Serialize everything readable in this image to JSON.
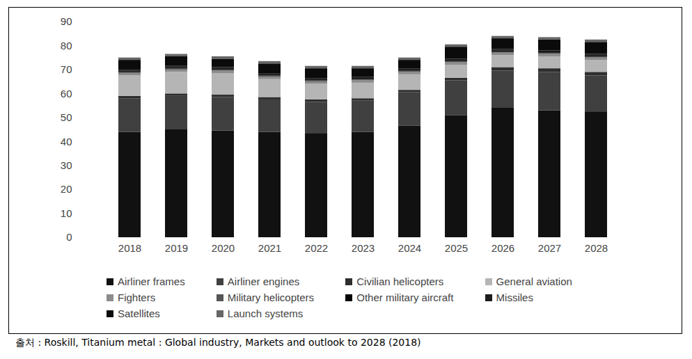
{
  "chart_data": {
    "type": "bar",
    "stacked": true,
    "source": "출처 : Roskill, Titanium metal : Global industry, Markets and outlook to 2028 (2018)",
    "categories": [
      "2018",
      "2019",
      "2020",
      "2021",
      "2022",
      "2023",
      "2024",
      "2025",
      "2026",
      "2027",
      "2028"
    ],
    "series": [
      {
        "name": "Airliner frames",
        "color": "#111111",
        "values": [
          44,
          45,
          44.5,
          44,
          43.5,
          44,
          46.5,
          51,
          54,
          53,
          52.5
        ]
      },
      {
        "name": "Airliner engines",
        "color": "#404040",
        "values": [
          14,
          14,
          14,
          13.5,
          13,
          13,
          14,
          14.5,
          15.5,
          16,
          15
        ]
      },
      {
        "name": "Civilian helicopters",
        "color": "#2e2e2e",
        "values": [
          1,
          1,
          1,
          1,
          1,
          1,
          1,
          1,
          1.5,
          1.5,
          1.5
        ]
      },
      {
        "name": "General aviation",
        "color": "#b5b5b5",
        "values": [
          8.5,
          9,
          9,
          7.5,
          6.5,
          6.5,
          6.5,
          5.5,
          5,
          5,
          5
        ]
      },
      {
        "name": "Fighters",
        "color": "#8c8c8c",
        "values": [
          1,
          1,
          1,
          1,
          1,
          1,
          1,
          1,
          1,
          1,
          1
        ]
      },
      {
        "name": "Military helicopters",
        "color": "#555555",
        "values": [
          0.5,
          0.5,
          0.5,
          0.5,
          0.5,
          0.5,
          0.5,
          0.5,
          0.5,
          0.5,
          0.5
        ]
      },
      {
        "name": "Other military aircraft",
        "color": "#050505",
        "values": [
          0.5,
          0.5,
          0.5,
          0.5,
          0.5,
          0.5,
          0.5,
          0.5,
          0.5,
          0.5,
          0.5
        ]
      },
      {
        "name": "Missiles",
        "color": "#1c1c1c",
        "values": [
          0.5,
          0.5,
          0.5,
          0.5,
          0.5,
          0.5,
          0.5,
          0.5,
          0.5,
          0.5,
          0.5
        ]
      },
      {
        "name": "Satellites",
        "color": "#0b0b0b",
        "values": [
          4,
          4,
          3.5,
          4,
          4,
          3.5,
          3.5,
          5,
          4.5,
          4.5,
          5
        ]
      },
      {
        "name": "Launch systems",
        "color": "#666666",
        "values": [
          1,
          1,
          1,
          1,
          1,
          1,
          1,
          1,
          1,
          1,
          1
        ]
      }
    ],
    "ylim": [
      0,
      90
    ],
    "yticks": [
      0,
      10,
      20,
      30,
      40,
      50,
      60,
      70,
      80,
      90
    ],
    "grid": false,
    "legend": "bottom"
  }
}
